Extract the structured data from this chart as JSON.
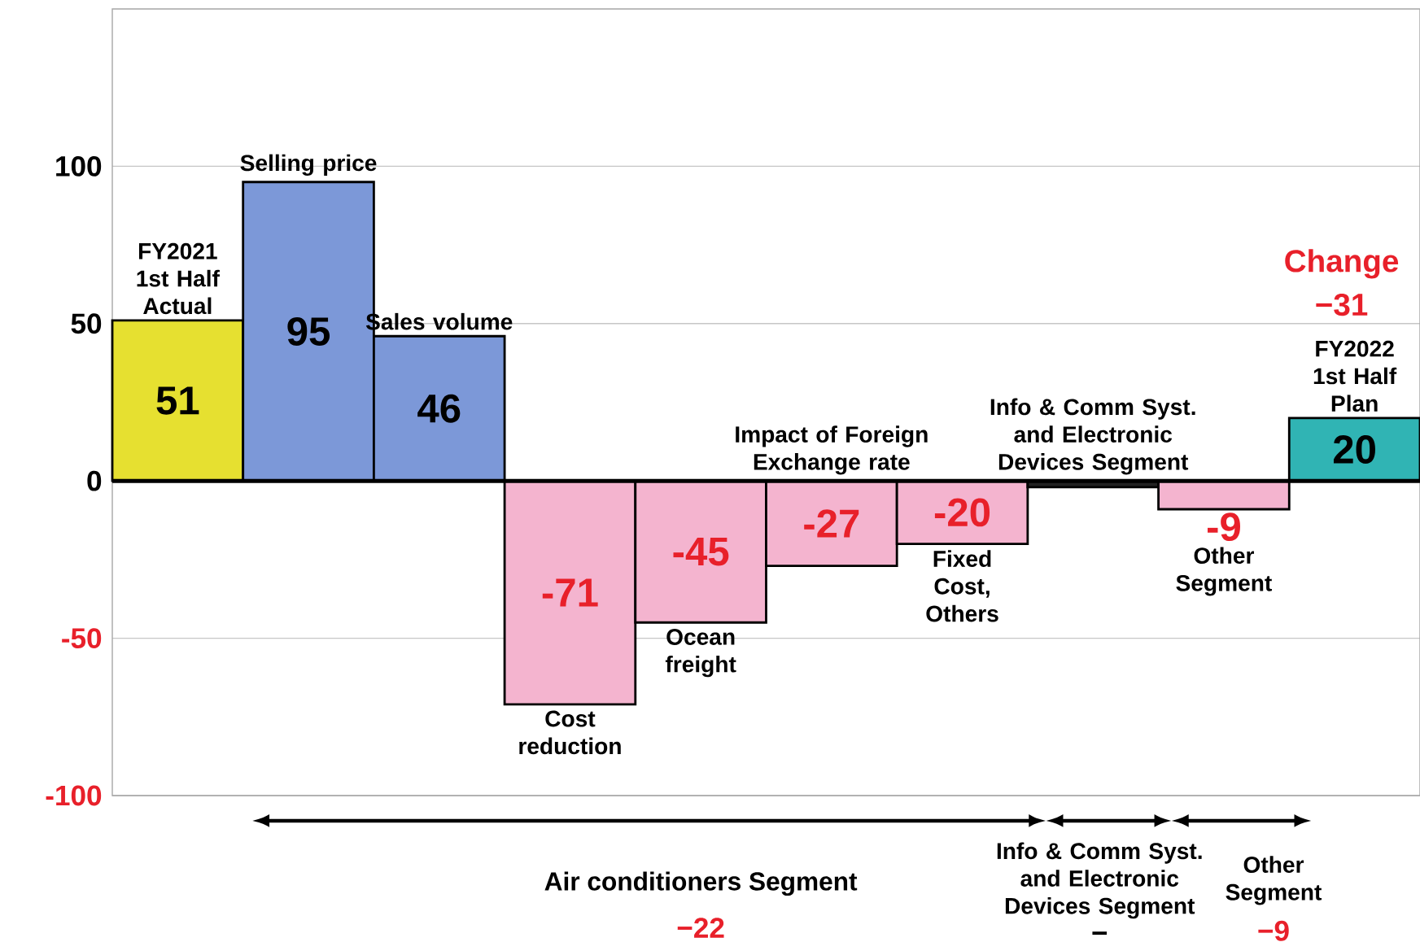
{
  "chart_data": {
    "type": "bar",
    "categories": [
      "FY2021 1st Half Actual",
      "Selling price",
      "Sales volume",
      "Cost reduction",
      "Ocean freight",
      "Impact of  Foreign Exchange rate",
      "Fixed Cost, Others",
      "Info & Comm Syst. and Electronic Devices Segment",
      "Other Segment",
      "FY2022 1st Half Plan"
    ],
    "values": [
      51,
      95,
      46,
      -71,
      -45,
      -27,
      -20,
      -2,
      -9,
      20
    ],
    "value_labels": [
      "51",
      "95",
      "46",
      "-71",
      "-45",
      "-27",
      "-20",
      null,
      "-9",
      "20"
    ],
    "colors": [
      "#e6e030",
      "#7c98d8",
      "#7c98d8",
      "#f4b4cf",
      "#f4b4cf",
      "#f4b4cf",
      "#f4b4cf",
      "#222222",
      "#f4b4cf",
      "#30b4b4"
    ],
    "ylim": [
      -100,
      150
    ],
    "yticks": [
      -100,
      -50,
      0,
      50,
      100
    ],
    "grid": "y",
    "annotations": [
      "Change",
      "−31",
      "Air conditioners Segment",
      "−22",
      "Info & Comm Syst. and Electronic Devices Segment",
      "−",
      "Other Segment",
      "−9"
    ]
  }
}
